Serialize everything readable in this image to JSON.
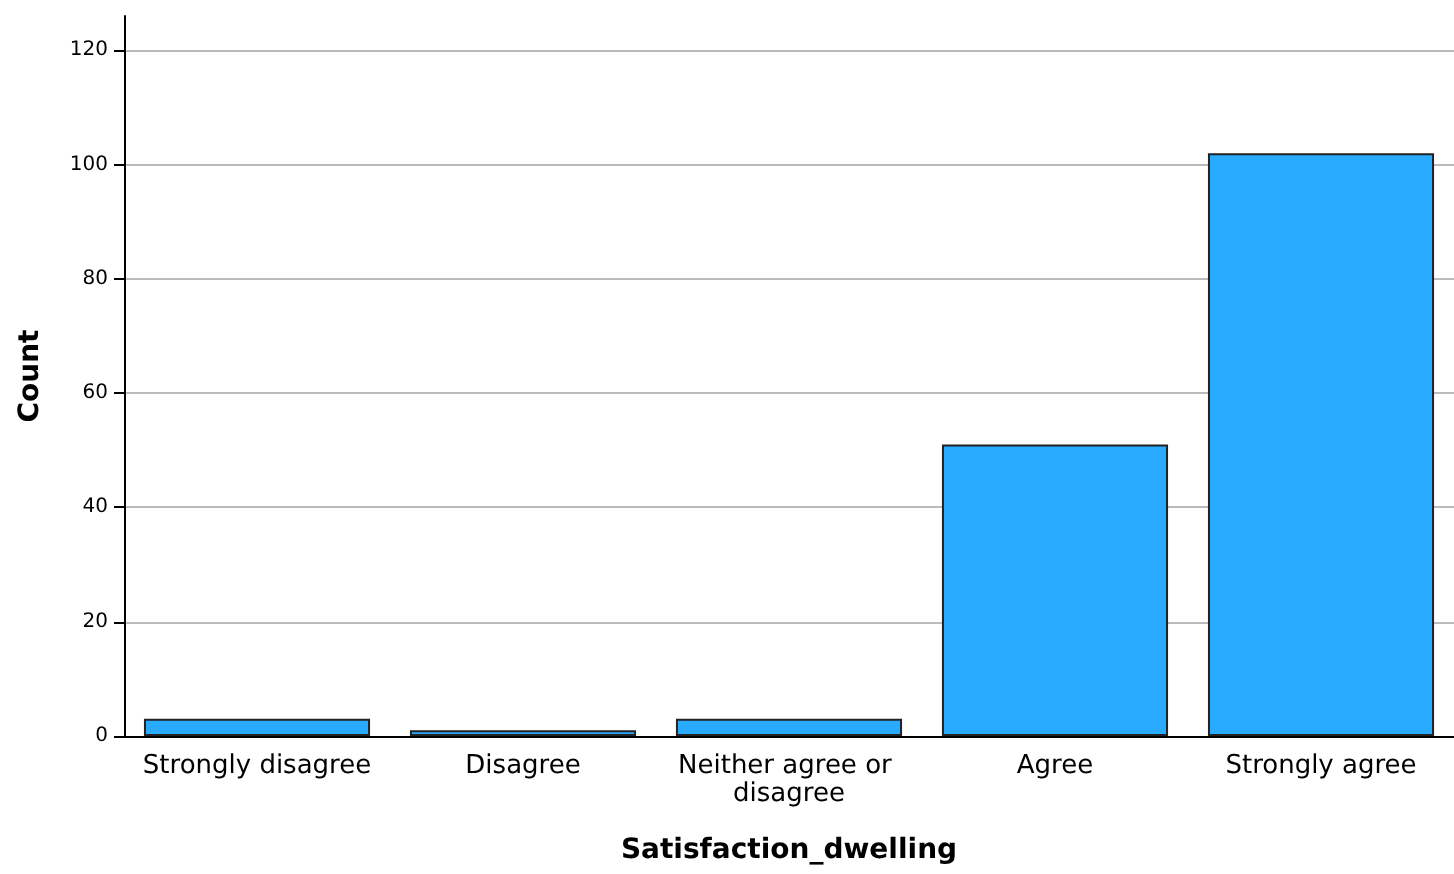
{
  "chart_data": {
    "type": "bar",
    "xlabel": "Satisfaction_dwelling",
    "ylabel": "Count",
    "categories": [
      "Strongly disagree",
      "Disagree",
      "Neither agree or disagree",
      "Agree",
      "Strongly agree"
    ],
    "values": [
      3,
      1,
      3,
      51,
      102
    ],
    "color": "#28aaff",
    "ylim": [
      0,
      126
    ],
    "yticks": [
      0,
      20,
      40,
      60,
      80,
      100,
      120
    ],
    "grid": "y"
  }
}
